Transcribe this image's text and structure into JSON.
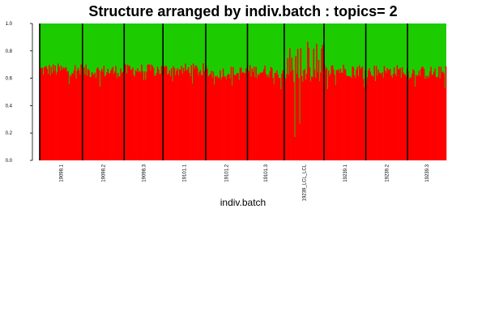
{
  "chart_data": {
    "type": "bar",
    "title": "Structure arranged by indiv.batch : topics= 2",
    "xlabel": "indiv.batch",
    "ylabel": "",
    "ylim": [
      0,
      1
    ],
    "yticks": [
      "0.0",
      "0.2",
      "0.4",
      "0.6",
      "0.8",
      "1.0"
    ],
    "stacked": true,
    "legend": "none",
    "colors": {
      "topic1": "#ff0000",
      "topic2": "#1ccc00",
      "separator": "#000000"
    },
    "categories": [
      "19098.1",
      "19098.2",
      "19098.3",
      "19101.1",
      "19101.2",
      "19101.3",
      "19239_LCL_LCL",
      "19239.1",
      "19239.2",
      "19239.3"
    ],
    "group_sizes": [
      43,
      42,
      39,
      43,
      42,
      37,
      40,
      42,
      42,
      39
    ],
    "topic1_mean_by_group": [
      0.66,
      0.65,
      0.66,
      0.66,
      0.64,
      0.65,
      0.62,
      0.66,
      0.65,
      0.64
    ],
    "topic1_min_by_group": [
      0.52,
      0.5,
      0.54,
      0.55,
      0.52,
      0.5,
      0.0,
      0.52,
      0.55,
      0.5
    ],
    "topic1_max_by_group": [
      0.72,
      0.72,
      0.7,
      0.72,
      0.72,
      0.74,
      0.87,
      0.71,
      0.73,
      0.72
    ]
  }
}
